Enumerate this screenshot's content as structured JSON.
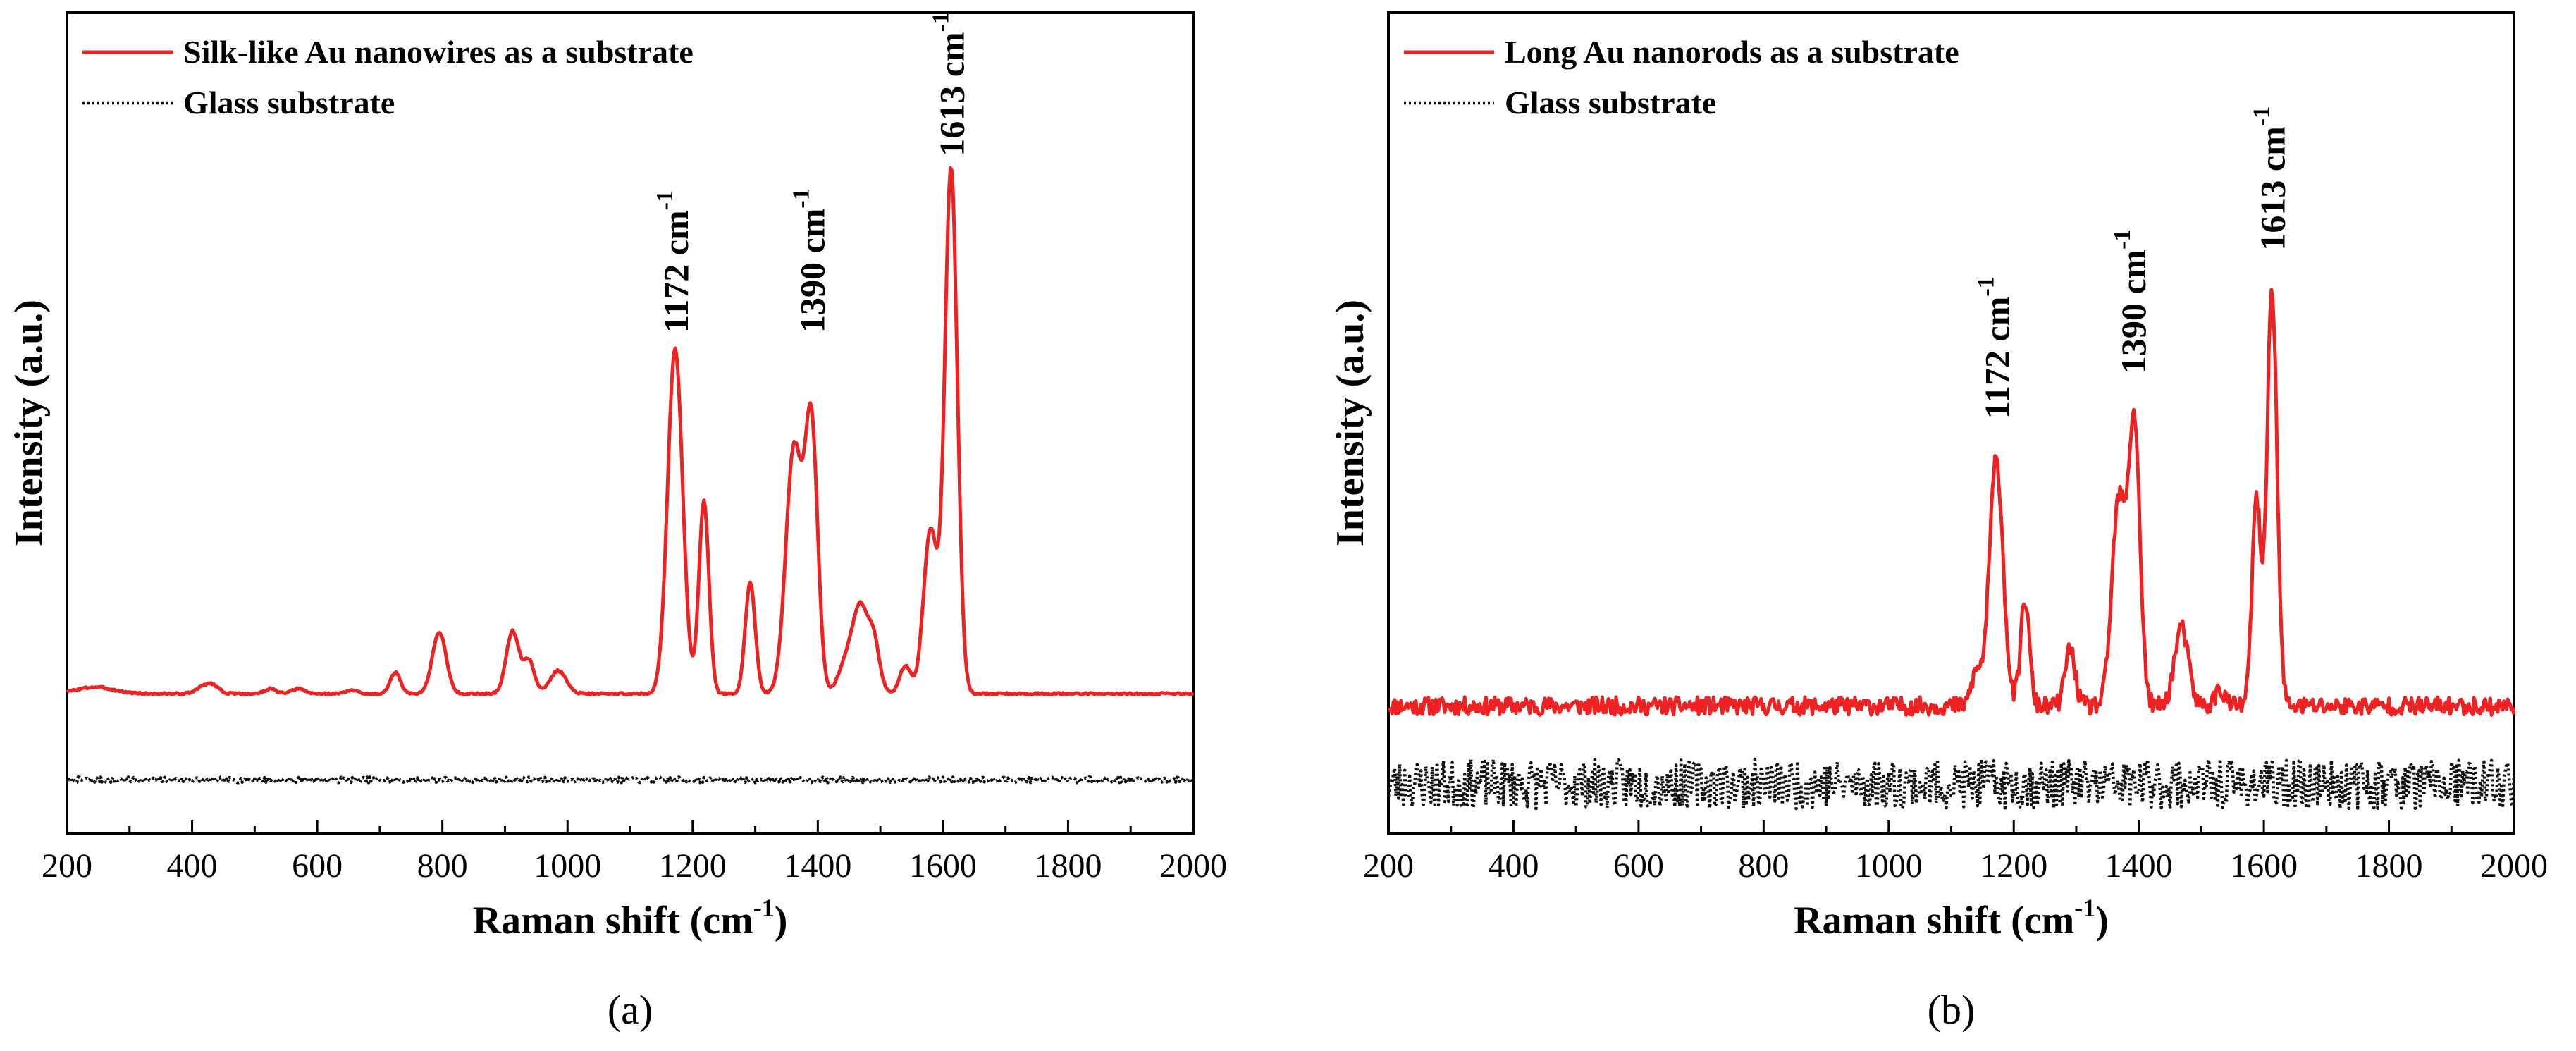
{
  "colors": {
    "red": "#ee2222",
    "black": "#111111"
  },
  "chart_data": [
    {
      "type": "line",
      "panel_label": "(a)",
      "xlabel_main": "Raman shift (cm",
      "xlabel_sup": "-1",
      "xlabel_close": ")",
      "ylabel": "Intensity (a.u.)",
      "xlim": [
        200,
        2000
      ],
      "ylim": [
        0,
        100
      ],
      "xticks": [
        200,
        400,
        600,
        800,
        1000,
        1200,
        1400,
        1600,
        1800,
        2000
      ],
      "y_ticks_shown": false,
      "legend_position": "top-left",
      "series": [
        {
          "name": "Silk-like Au nanowires as a substrate",
          "color": "#ee2222",
          "style": "solid",
          "baseline": 17.0,
          "noise_amp": 0.12,
          "noise_seed": 3,
          "peaks": [
            {
              "x": 245,
              "h": 0.8,
              "w": 30
            },
            {
              "x": 420,
              "h": 0.9,
              "w": 12
            },
            {
              "x": 435,
              "h": 0.7,
              "w": 10
            },
            {
              "x": 525,
              "h": 0.6,
              "w": 9
            },
            {
              "x": 570,
              "h": 0.6,
              "w": 10
            },
            {
              "x": 655,
              "h": 0.4,
              "w": 10
            },
            {
              "x": 725,
              "h": 2.6,
              "w": 8
            },
            {
              "x": 795,
              "h": 7.5,
              "w": 11
            },
            {
              "x": 912,
              "h": 7.6,
              "w": 10
            },
            {
              "x": 938,
              "h": 4.0,
              "w": 9
            },
            {
              "x": 985,
              "h": 2.8,
              "w": 13
            },
            {
              "x": 1172,
              "h": 42.0,
              "w": 12
            },
            {
              "x": 1218,
              "h": 23.5,
              "w": 8
            },
            {
              "x": 1292,
              "h": 13.5,
              "w": 8
            },
            {
              "x": 1362,
              "h": 30.0,
              "w": 13
            },
            {
              "x": 1390,
              "h": 32.0,
              "w": 10
            },
            {
              "x": 1450,
              "h": 5.0,
              "w": 14
            },
            {
              "x": 1468,
              "h": 8.0,
              "w": 10
            },
            {
              "x": 1488,
              "h": 7.0,
              "w": 10
            },
            {
              "x": 1540,
              "h": 3.4,
              "w": 9
            },
            {
              "x": 1580,
              "h": 20.0,
              "w": 11
            },
            {
              "x": 1613,
              "h": 64.0,
              "w": 10
            }
          ]
        },
        {
          "name": "Glass substrate",
          "color": "#111111",
          "style": "dotted",
          "baseline": 6.5,
          "noise_amp": 0.35,
          "noise_seed": 7,
          "peaks": []
        }
      ],
      "annotations": [
        {
          "label": "1172 cm",
          "sup": "-1",
          "x": 1172,
          "y": 61
        },
        {
          "label": "1390 cm",
          "sup": "-1",
          "x": 1390,
          "y": 61
        },
        {
          "label": "1613 cm",
          "sup": "-1",
          "x": 1613,
          "y": 82.5
        }
      ]
    },
    {
      "type": "line",
      "panel_label": "(b)",
      "xlabel_main": "Raman shift (cm",
      "xlabel_sup": "-1",
      "xlabel_close": ")",
      "ylabel": "Intensity (a.u.)",
      "xlim": [
        200,
        2000
      ],
      "ylim": [
        0,
        100
      ],
      "xticks": [
        200,
        400,
        600,
        800,
        1000,
        1200,
        1400,
        1600,
        1800,
        2000
      ],
      "y_ticks_shown": false,
      "legend_position": "top-left",
      "series": [
        {
          "name": "Long Au nanorods as a substrate",
          "color": "#ee2222",
          "style": "solid",
          "baseline": 15.5,
          "noise_amp": 1.1,
          "noise_seed": 11,
          "peaks": [
            {
              "x": 1140,
              "h": 4.0,
              "w": 8
            },
            {
              "x": 1172,
              "h": 30.0,
              "w": 11
            },
            {
              "x": 1218,
              "h": 13.0,
              "w": 7
            },
            {
              "x": 1290,
              "h": 7.0,
              "w": 8
            },
            {
              "x": 1368,
              "h": 25.0,
              "w": 11
            },
            {
              "x": 1393,
              "h": 34.0,
              "w": 9
            },
            {
              "x": 1468,
              "h": 9.5,
              "w": 11
            },
            {
              "x": 1530,
              "h": 2.0,
              "w": 8
            },
            {
              "x": 1588,
              "h": 25.0,
              "w": 7
            },
            {
              "x": 1613,
              "h": 51.0,
              "w": 8
            }
          ]
        },
        {
          "name": "Glass substrate",
          "color": "#111111",
          "style": "dotted",
          "baseline": 6.0,
          "noise_amp": 3.0,
          "noise_seed": 23,
          "peaks": []
        }
      ],
      "annotations": [
        {
          "label": "1172 cm",
          "sup": "-1",
          "x": 1172,
          "y": 50.5
        },
        {
          "label": "1390 cm",
          "sup": "-1",
          "x": 1390,
          "y": 56
        },
        {
          "label": "1613 cm",
          "sup": "-1",
          "x": 1613,
          "y": 71
        }
      ]
    }
  ]
}
